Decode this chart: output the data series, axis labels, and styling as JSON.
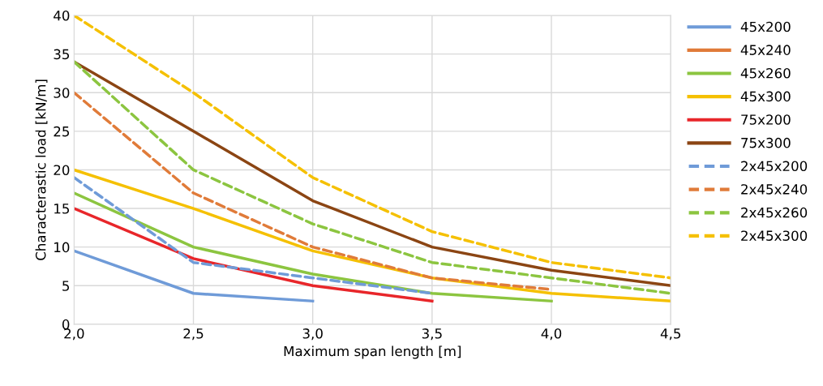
{
  "chart_data": {
    "type": "line",
    "xlabel": "Maximum span length [m]",
    "ylabel": "Characterastic load [kN/m]",
    "x": [
      2.0,
      2.5,
      3.0,
      3.5,
      4.0,
      4.5
    ],
    "xlim": [
      2.0,
      4.5
    ],
    "xticks": [
      {
        "value": 2.0,
        "label": "2,0"
      },
      {
        "value": 2.5,
        "label": "2,5"
      },
      {
        "value": 3.0,
        "label": "3,0"
      },
      {
        "value": 3.5,
        "label": "3,5"
      },
      {
        "value": 4.0,
        "label": "4,0"
      },
      {
        "value": 4.5,
        "label": "4,5"
      }
    ],
    "ylim": [
      0,
      40
    ],
    "yticks": [
      0,
      5,
      10,
      15,
      20,
      25,
      30,
      35,
      40
    ],
    "grid": true,
    "legend": "right",
    "marker": "none",
    "series": [
      {
        "name": "45x200",
        "color": "#6f9bd8",
        "line_style": "solid",
        "values": [
          9.5,
          4,
          3,
          null,
          null,
          null
        ]
      },
      {
        "name": "45x240",
        "color": "#e07b39",
        "line_style": "solid",
        "values": [
          null,
          null,
          null,
          null,
          null,
          null
        ]
      },
      {
        "name": "45x260",
        "color": "#8cc540",
        "line_style": "solid",
        "values": [
          17,
          10,
          6.5,
          4,
          3,
          null
        ]
      },
      {
        "name": "45x300",
        "color": "#f5c000",
        "line_style": "solid",
        "values": [
          20,
          15,
          9.5,
          6,
          4,
          3
        ]
      },
      {
        "name": "75x200",
        "color": "#e8262a",
        "line_style": "solid",
        "values": [
          15,
          8.5,
          5,
          3,
          null,
          null
        ]
      },
      {
        "name": "75x300",
        "color": "#8b4513",
        "line_style": "solid",
        "values": [
          34,
          25,
          16,
          10,
          7,
          5
        ]
      },
      {
        "name": "2x45x200",
        "color": "#6f9bd8",
        "line_style": "dashed",
        "values": [
          19,
          8,
          6,
          4,
          null,
          null
        ]
      },
      {
        "name": "2x45x240",
        "color": "#e07b39",
        "line_style": "dashed",
        "values": [
          30,
          17,
          10,
          6,
          4.5,
          null
        ]
      },
      {
        "name": "2x45x260",
        "color": "#8cc540",
        "line_style": "dashed",
        "values": [
          34,
          20,
          13,
          8,
          6,
          4
        ]
      },
      {
        "name": "2x45x300",
        "color": "#f5c000",
        "line_style": "dashed",
        "values": [
          40,
          30,
          19,
          12,
          8,
          6
        ]
      }
    ]
  }
}
